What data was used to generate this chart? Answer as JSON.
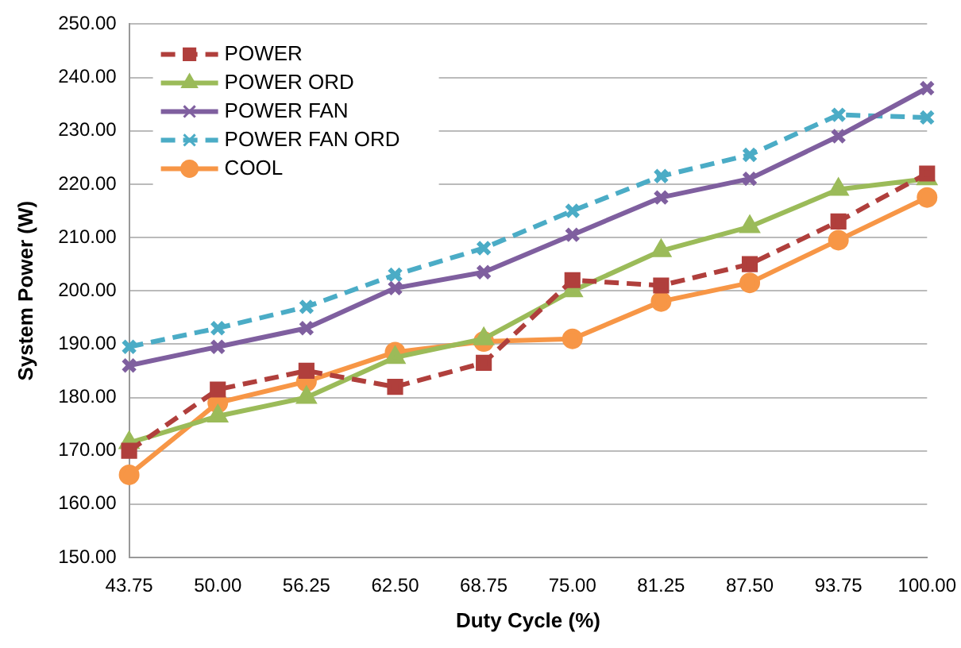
{
  "chart_data": {
    "type": "line",
    "xlabel": "Duty Cycle (%)",
    "ylabel": "System Power (W)",
    "categories": [
      "43.75",
      "50.00",
      "56.25",
      "62.50",
      "68.75",
      "75.00",
      "81.25",
      "87.50",
      "93.75",
      "100.00"
    ],
    "series": [
      {
        "name": "POWER",
        "color": "#b03f3c",
        "marker": "square",
        "line_style": "dashed",
        "values": [
          170,
          181.5,
          185,
          182,
          186.5,
          202,
          201,
          205,
          213,
          222
        ]
      },
      {
        "name": "POWER ORD",
        "color": "#9bbb59",
        "marker": "triangle",
        "line_style": "solid",
        "values": [
          171.5,
          176.5,
          180,
          187.5,
          191,
          200,
          207.5,
          212,
          219,
          221
        ]
      },
      {
        "name": "POWER FAN",
        "color": "#7f5f9f",
        "marker": "cross",
        "line_style": "solid",
        "values": [
          186,
          189.5,
          193,
          200.5,
          203.5,
          210.5,
          217.5,
          221,
          229,
          238
        ]
      },
      {
        "name": "POWER FAN ORD",
        "color": "#4bacc6",
        "marker": "cross",
        "line_style": "dashed",
        "values": [
          189.5,
          193,
          197,
          203,
          208,
          215,
          221.5,
          225.5,
          233,
          232.5
        ]
      },
      {
        "name": "COOL",
        "color": "#f79646",
        "marker": "circle",
        "line_style": "solid",
        "values": [
          165.5,
          179,
          183,
          188.5,
          190.5,
          191,
          198,
          201.5,
          209.5,
          217.5
        ]
      }
    ],
    "ylim": [
      150,
      250
    ],
    "yticks": [
      {
        "value": 150,
        "label": "150.00"
      },
      {
        "value": 160,
        "label": "160.00"
      },
      {
        "value": 170,
        "label": "170.00"
      },
      {
        "value": 180,
        "label": "180.00"
      },
      {
        "value": 190,
        "label": "190.00"
      },
      {
        "value": 200,
        "label": "200.00"
      },
      {
        "value": 210,
        "label": "210.00"
      },
      {
        "value": 220,
        "label": "220.00"
      },
      {
        "value": 230,
        "label": "230.00"
      },
      {
        "value": 240,
        "label": "240.00"
      },
      {
        "value": 250,
        "label": "250.00"
      }
    ],
    "grid": "y",
    "legend": "top left"
  }
}
